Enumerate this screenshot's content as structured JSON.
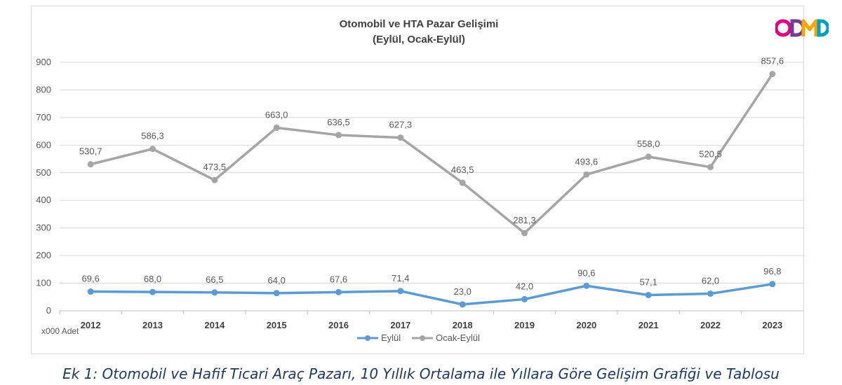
{
  "chart_data": {
    "type": "line",
    "title": "Otomobil ve HTA Pazar Gelişimi",
    "subtitle": "(Eylül, Ocak-Eylül)",
    "unit_label": "x000 Adet",
    "categories": [
      "2012",
      "2013",
      "2014",
      "2015",
      "2016",
      "2017",
      "2018",
      "2019",
      "2020",
      "2021",
      "2022",
      "2023"
    ],
    "series": [
      {
        "name": "Eylül",
        "color": "#5b9bd5",
        "values": [
          69.6,
          68.0,
          66.5,
          64.0,
          67.6,
          71.4,
          23.0,
          42.0,
          90.6,
          57.1,
          62.0,
          96.8
        ],
        "labels": [
          "69,6",
          "68,0",
          "66,5",
          "64,0",
          "67,6",
          "71,4",
          "23,0",
          "42,0",
          "90,6",
          "57,1",
          "62,0",
          "96,8"
        ]
      },
      {
        "name": "Ocak-Eylül",
        "color": "#a5a5a5",
        "values": [
          530.7,
          586.3,
          473.5,
          663.0,
          636.5,
          627.3,
          463.5,
          281.3,
          493.6,
          558.0,
          520.5,
          857.6
        ],
        "labels": [
          "530,7",
          "586,3",
          "473,5",
          "663,0",
          "636,5",
          "627,3",
          "463,5",
          "281,3",
          "493,6",
          "558,0",
          "520,5",
          "857,6"
        ]
      }
    ],
    "yticks": [
      "0",
      "100",
      "200",
      "300",
      "400",
      "500",
      "600",
      "700",
      "800",
      "900"
    ],
    "ylim": [
      0,
      900
    ],
    "grid": true,
    "legend": "bottom"
  },
  "logo": {
    "text": "ODMD",
    "colors": [
      "#e6007e",
      "#6f3d97",
      "#f7a600",
      "#00a0c6"
    ]
  },
  "caption": "Ek 1: Otomobil ve Hafif Ticari Araç Pazarı, 10 Yıllık Ortalama ile Yıllara Göre Gelişim Grafiği ve Tablosu"
}
